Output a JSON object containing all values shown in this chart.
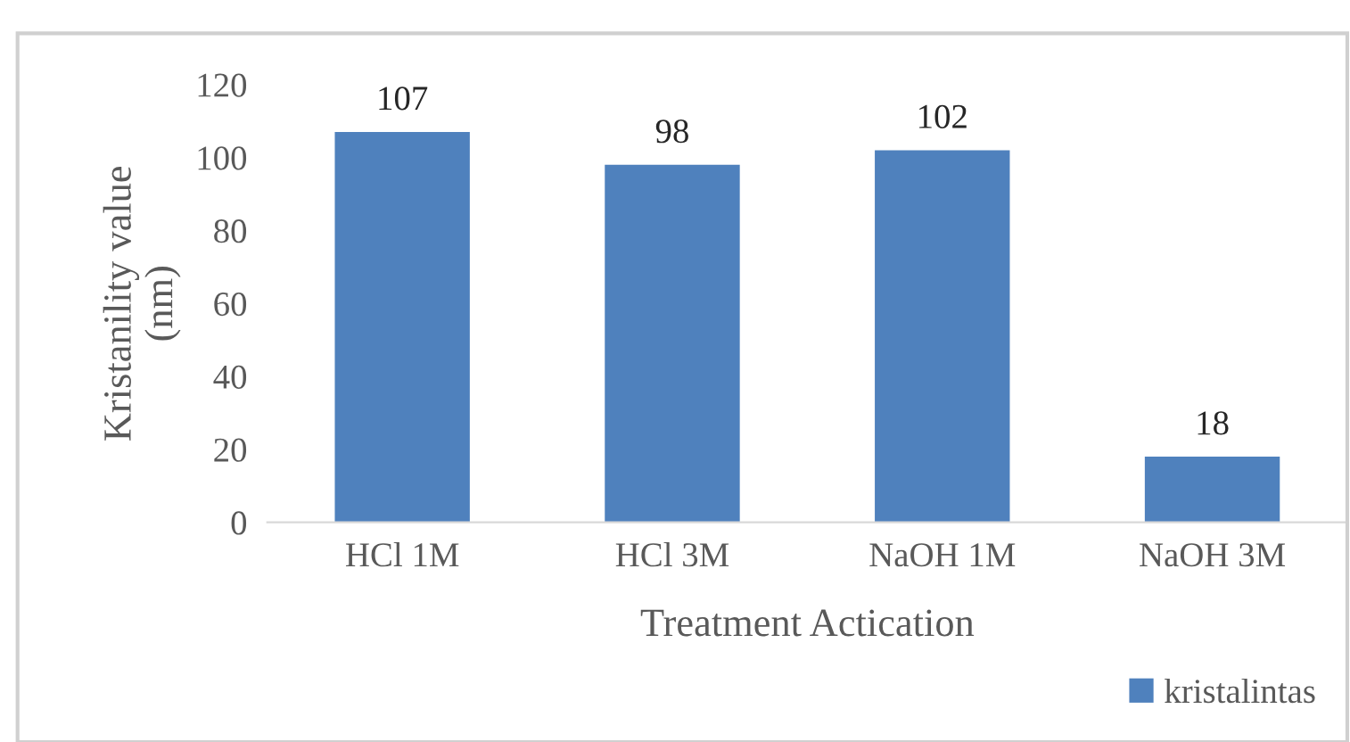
{
  "chart_data": {
    "type": "bar",
    "xlabel": "Treatment Actication",
    "ylabel": "Kristanility value\n(nm)",
    "categories": [
      "HCl 1M",
      "HCl 3M",
      "NaOH 1M",
      "NaOH 3M"
    ],
    "series": [
      {
        "name": "kristalintas",
        "color": "#4f81bd",
        "values": [
          107,
          98,
          102,
          18
        ]
      }
    ],
    "ylim": [
      0,
      120
    ],
    "yticks": [
      0,
      20,
      40,
      60,
      80,
      100,
      120
    ],
    "grid": false,
    "data_labels": true,
    "legend": "bottom right"
  }
}
